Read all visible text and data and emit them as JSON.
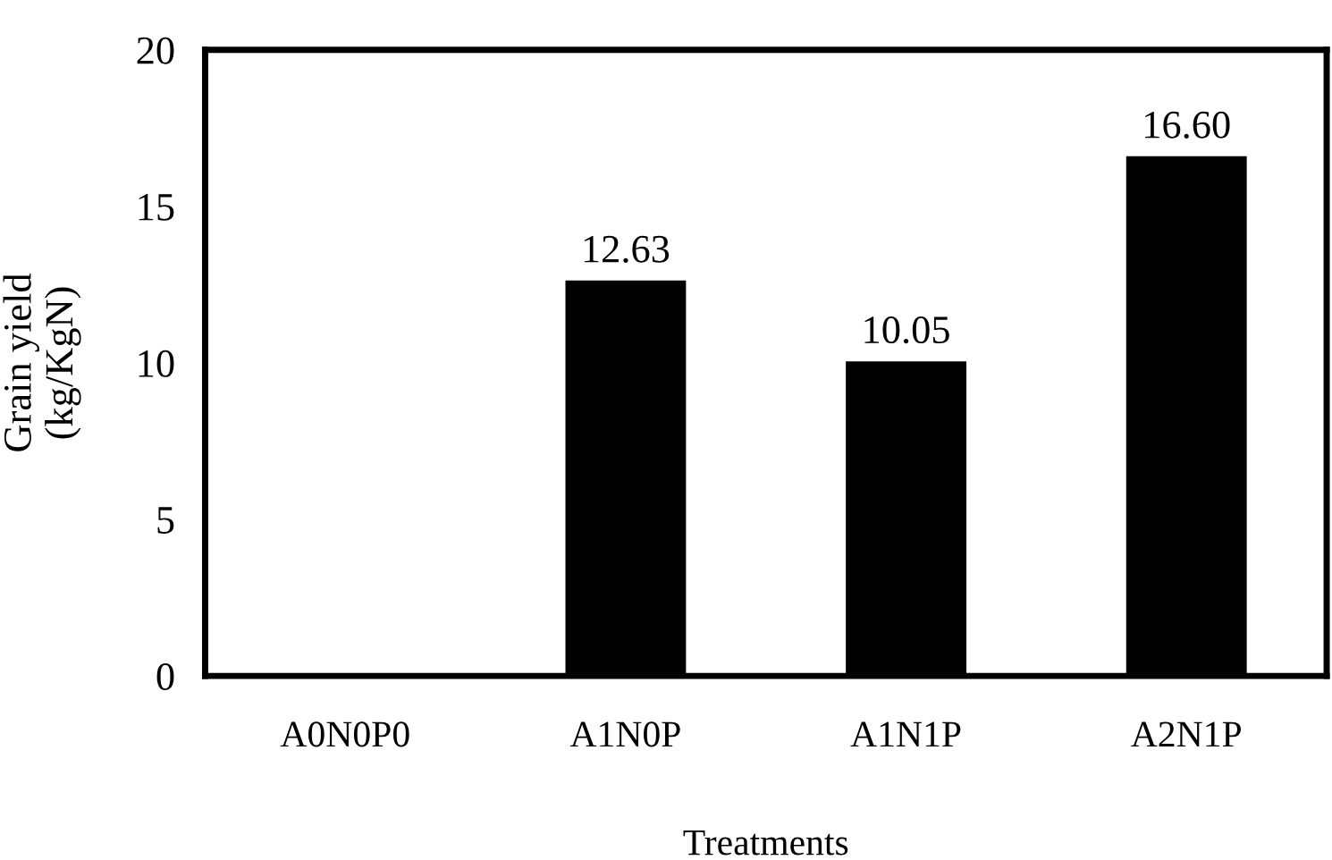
{
  "chart_data": {
    "type": "bar",
    "xlabel": "Treatments",
    "ylabel": "Grain yield\n(kg/KgN)",
    "categories": [
      "A0N0P0",
      "A1N0P",
      "A1N1P",
      "A2N1P"
    ],
    "values": [
      0,
      12.63,
      10.05,
      16.6
    ],
    "value_labels": [
      null,
      "12.63",
      "10.05",
      "16.60"
    ],
    "color": "#000000",
    "ylim": [
      0,
      20
    ],
    "yticks": [
      0,
      5,
      10,
      15,
      20
    ],
    "grid": false,
    "legend": false
  }
}
